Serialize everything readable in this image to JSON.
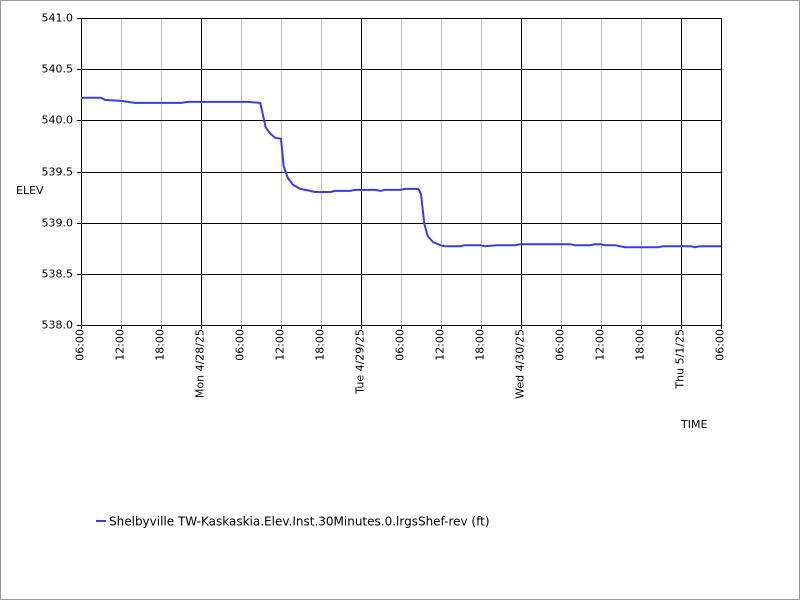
{
  "chart_data": {
    "type": "line",
    "x_label": "TIME",
    "y_label": "ELEV",
    "xlim": [
      0,
      96
    ],
    "xticks": [
      {
        "value": 0,
        "label": "06:00"
      },
      {
        "value": 6,
        "label": "12:00"
      },
      {
        "value": 12,
        "label": "18:00"
      },
      {
        "value": 18,
        "label": "Mon 4/28/25"
      },
      {
        "value": 24,
        "label": "06:00"
      },
      {
        "value": 30,
        "label": "12:00"
      },
      {
        "value": 36,
        "label": "18:00"
      },
      {
        "value": 42,
        "label": "Tue 4/29/25"
      },
      {
        "value": 48,
        "label": "06:00"
      },
      {
        "value": 54,
        "label": "12:00"
      },
      {
        "value": 60,
        "label": "18:00"
      },
      {
        "value": 66,
        "label": "Wed 4/30/25"
      },
      {
        "value": 72,
        "label": "06:00"
      },
      {
        "value": 78,
        "label": "12:00"
      },
      {
        "value": 84,
        "label": "18:00"
      },
      {
        "value": 90,
        "label": "Thu 5/1/25"
      },
      {
        "value": 96,
        "label": "06:00"
      }
    ],
    "ylim": [
      538,
      541
    ],
    "yticks": [
      {
        "value": 538,
        "label": "538.0"
      },
      {
        "value": 538.5,
        "label": "538.5"
      },
      {
        "value": 539,
        "label": "539.0"
      },
      {
        "value": 539.5,
        "label": "539.5"
      },
      {
        "value": 540,
        "label": "540.0"
      },
      {
        "value": 540.5,
        "label": "540.5"
      },
      {
        "value": 541,
        "label": "541.0"
      }
    ],
    "grid": true,
    "x": [
      0,
      3,
      3.6,
      6,
      8.1,
      15,
      16,
      18,
      25,
      26.9,
      27.3,
      27.7,
      28.4,
      29.1,
      30,
      30.4,
      31,
      31.8,
      32.9,
      34.4,
      35.1,
      37.4,
      38.1,
      40.4,
      41.1,
      44.1,
      44.9,
      45.6,
      47.9,
      48.6,
      50.6,
      51,
      51.5,
      52,
      52.8,
      53.9,
      54.6,
      56.9,
      57.6,
      59.9,
      60.6,
      62.4,
      65.1,
      65.9,
      73.4,
      74.1,
      76.4,
      77.1,
      77.9,
      78.6,
      80.1,
      81.6,
      86.6,
      87.3,
      91.4,
      92.1,
      92.9,
      96
    ],
    "series": [
      {
        "name": "Shelbyville TW-Kaskaskia.Elev.Inst.30Minutes.0.lrgsShef-rev (ft)",
        "color": "#3c3ce6",
        "values": [
          540.22,
          540.22,
          540.2,
          540.19,
          540.17,
          540.17,
          540.18,
          540.18,
          540.18,
          540.17,
          540.05,
          539.93,
          539.87,
          539.83,
          539.82,
          539.55,
          539.44,
          539.37,
          539.33,
          539.31,
          539.3,
          539.3,
          539.31,
          539.31,
          539.32,
          539.32,
          539.31,
          539.32,
          539.32,
          539.33,
          539.33,
          539.28,
          538.99,
          538.87,
          538.81,
          538.78,
          538.77,
          538.77,
          538.78,
          538.78,
          538.77,
          538.78,
          538.78,
          538.79,
          538.79,
          538.78,
          538.78,
          538.79,
          538.79,
          538.78,
          538.78,
          538.76,
          538.76,
          538.77,
          538.77,
          538.76,
          538.77,
          538.77
        ]
      }
    ]
  }
}
